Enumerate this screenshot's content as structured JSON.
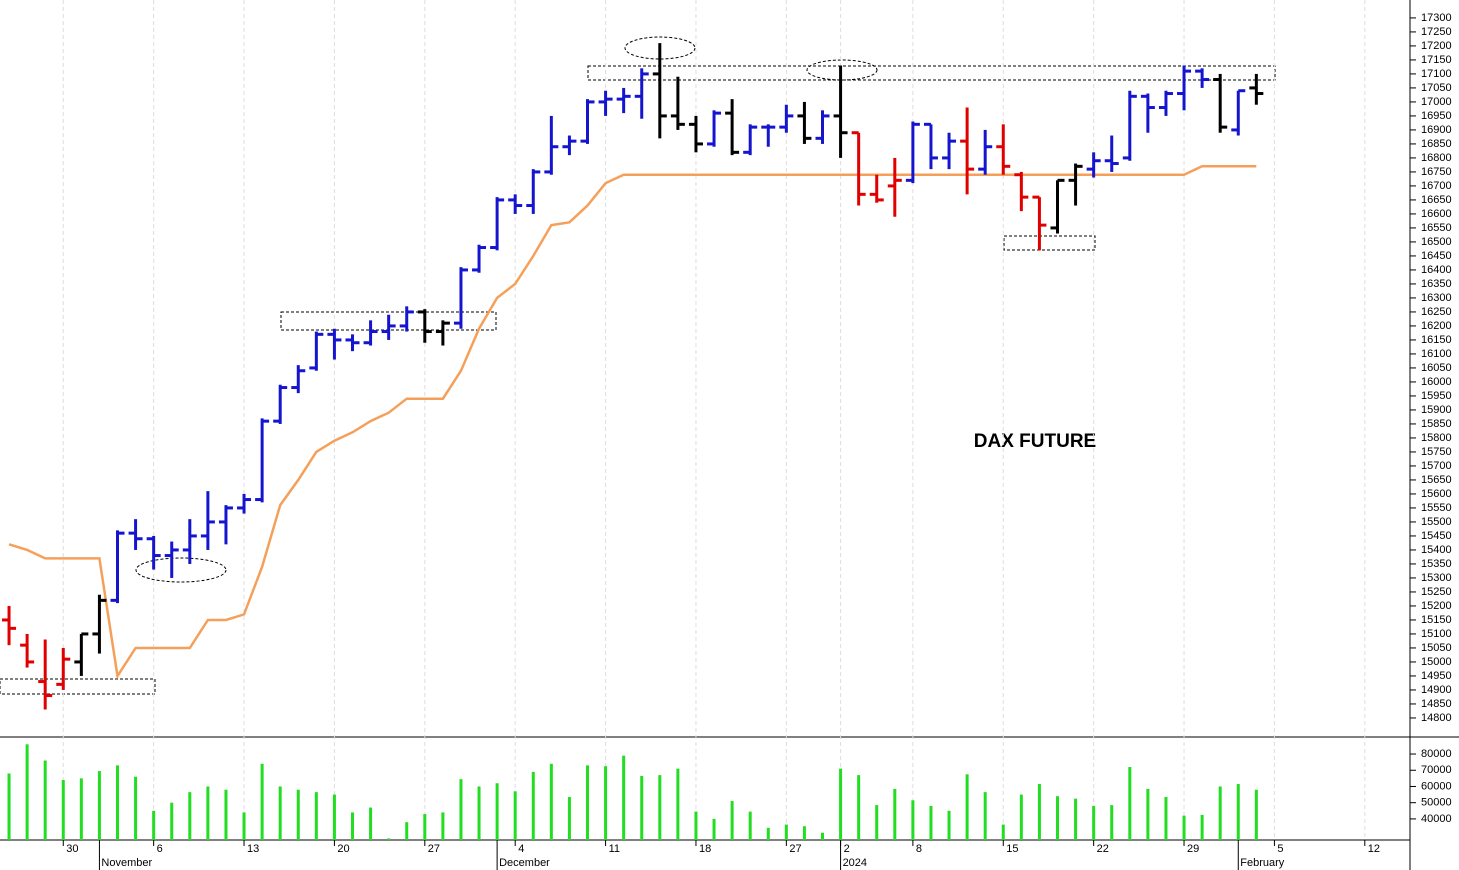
{
  "chart_data": [
    {
      "type": "ohlc",
      "title": "DAX FUTURE",
      "open": [
        15150,
        15060,
        14930,
        14920,
        15000,
        15100,
        15220,
        15460,
        15440,
        15380,
        15400,
        15450,
        15500,
        15550,
        15580,
        15860,
        15980,
        16050,
        16170,
        16150,
        16140,
        16180,
        16200,
        16250,
        16180,
        16210,
        16400,
        16480,
        16650,
        16630,
        16750,
        16840,
        16860,
        17000,
        17010,
        17020,
        17100,
        16950,
        16920,
        16850,
        16960,
        16820,
        16910,
        16910,
        16950,
        16870,
        16950,
        16890,
        16670,
        16700,
        16720,
        16920,
        16800,
        16860,
        16760,
        16840,
        16740,
        16660,
        16550,
        16720,
        16760,
        16790,
        16800,
        17020,
        16980,
        17030,
        17110,
        17080,
        16900,
        17050
      ],
      "high": [
        15200,
        15100,
        15080,
        15050,
        15100,
        15240,
        15470,
        15510,
        15450,
        15430,
        15510,
        15610,
        15560,
        15600,
        15870,
        15990,
        16060,
        16180,
        16190,
        16170,
        16220,
        16240,
        16270,
        16260,
        16220,
        16410,
        16490,
        16660,
        16670,
        16760,
        16950,
        16880,
        17010,
        17040,
        17050,
        17120,
        17210,
        17090,
        16950,
        16970,
        17010,
        16920,
        16920,
        16990,
        17000,
        16970,
        17130,
        16890,
        16740,
        16800,
        16930,
        16920,
        16890,
        16980,
        16900,
        16920,
        16750,
        16660,
        16720,
        16780,
        16820,
        16880,
        17040,
        17030,
        17040,
        17130,
        17120,
        17100,
        17040,
        17100
      ],
      "low": [
        15060,
        14980,
        14830,
        14900,
        14950,
        15030,
        15210,
        15400,
        15330,
        15300,
        15350,
        15400,
        15420,
        15530,
        15570,
        15850,
        15960,
        16040,
        16080,
        16110,
        16130,
        16150,
        16180,
        16140,
        16130,
        16190,
        16390,
        16470,
        16600,
        16600,
        16740,
        16810,
        16850,
        16950,
        16960,
        16940,
        16870,
        16900,
        16820,
        16840,
        16810,
        16810,
        16840,
        16890,
        16850,
        16850,
        16800,
        16630,
        16640,
        16590,
        16710,
        16760,
        16760,
        16670,
        16740,
        16740,
        16610,
        16470,
        16530,
        16630,
        16730,
        16750,
        16790,
        16890,
        16950,
        16970,
        17050,
        16890,
        16880,
        16990
      ],
      "close": [
        15120,
        15000,
        14880,
        15010,
        15100,
        15220,
        15460,
        15440,
        15380,
        15400,
        15450,
        15500,
        15550,
        15580,
        15860,
        15980,
        16040,
        16170,
        16150,
        16140,
        16180,
        16200,
        16250,
        16180,
        16210,
        16400,
        16480,
        16650,
        16630,
        16750,
        16840,
        16860,
        17000,
        17010,
        17020,
        17100,
        16950,
        16920,
        16850,
        16960,
        16820,
        16910,
        16910,
        16950,
        16870,
        16950,
        16890,
        16670,
        16650,
        16720,
        16920,
        16800,
        16860,
        16760,
        16840,
        16770,
        16660,
        16560,
        16720,
        16770,
        16790,
        16780,
        17020,
        16980,
        17030,
        17110,
        17080,
        16910,
        17040,
        17030
      ],
      "colors": [
        "#e00000",
        "#e00000",
        "#e00000",
        "#e00000",
        "#000000",
        "#000000",
        "#1515d0",
        "#1515d0",
        "#1515d0",
        "#1515d0",
        "#1515d0",
        "#1515d0",
        "#1515d0",
        "#1515d0",
        "#1515d0",
        "#1515d0",
        "#1515d0",
        "#1515d0",
        "#1515d0",
        "#1515d0",
        "#1515d0",
        "#1515d0",
        "#1515d0",
        "#000000",
        "#000000",
        "#1515d0",
        "#1515d0",
        "#1515d0",
        "#1515d0",
        "#1515d0",
        "#1515d0",
        "#1515d0",
        "#1515d0",
        "#1515d0",
        "#1515d0",
        "#1515d0",
        "#000000",
        "#000000",
        "#000000",
        "#1515d0",
        "#000000",
        "#1515d0",
        "#1515d0",
        "#1515d0",
        "#000000",
        "#1515d0",
        "#000000",
        "#e00000",
        "#e00000",
        "#e00000",
        "#1515d0",
        "#1515d0",
        "#1515d0",
        "#e00000",
        "#1515d0",
        "#e00000",
        "#e00000",
        "#e00000",
        "#000000",
        "#000000",
        "#1515d0",
        "#1515d0",
        "#1515d0",
        "#1515d0",
        "#1515d0",
        "#1515d0",
        "#1515d0",
        "#000000",
        "#1515d0",
        "#000000"
      ],
      "overlay": {
        "color": "#f5a05a",
        "values": [
          15420,
          15400,
          15370,
          15370,
          15370,
          15370,
          14950,
          15050,
          15050,
          15050,
          15050,
          15150,
          15150,
          15170,
          15340,
          15560,
          15650,
          15750,
          15790,
          15820,
          15860,
          15890,
          15940,
          15940,
          15940,
          16040,
          16190,
          16300,
          16350,
          16450,
          16560,
          16570,
          16630,
          16710,
          16740,
          16740,
          16740,
          16740,
          16740,
          16740,
          16740,
          16740,
          16740,
          16740,
          16740,
          16740,
          16740,
          16740,
          16740,
          16740,
          16740,
          16740,
          16740,
          16740,
          16740,
          16740,
          16740,
          16740,
          16740,
          16740,
          16740,
          16740,
          16740,
          16740,
          16740,
          16740,
          16770,
          16770,
          16770,
          16770
        ]
      },
      "ylim": [
        14732,
        17364
      ],
      "yticks": [
        14800,
        14850,
        14900,
        14950,
        15000,
        15050,
        15100,
        15150,
        15200,
        15250,
        15300,
        15350,
        15400,
        15450,
        15500,
        15550,
        15600,
        15650,
        15700,
        15750,
        15800,
        15850,
        15900,
        15950,
        16000,
        16050,
        16100,
        16150,
        16200,
        16250,
        16300,
        16350,
        16400,
        16450,
        16500,
        16550,
        16600,
        16650,
        16700,
        16750,
        16800,
        16850,
        16900,
        16950,
        17000,
        17050,
        17100,
        17150,
        17200,
        17250,
        17300
      ]
    },
    {
      "type": "bar",
      "color": "#22dd22",
      "categories": [
        null,
        null,
        null,
        "30",
        null,
        null,
        null,
        null,
        "6",
        null,
        null,
        null,
        null,
        "13",
        null,
        null,
        null,
        null,
        "20",
        null,
        null,
        null,
        null,
        "27",
        null,
        null,
        null,
        null,
        "4",
        null,
        null,
        null,
        null,
        "11",
        null,
        null,
        null,
        null,
        "18",
        null,
        null,
        null,
        null,
        "27",
        null,
        null,
        "2",
        null,
        null,
        null,
        "8",
        null,
        null,
        null,
        null,
        "15",
        null,
        null,
        null,
        null,
        "22",
        null,
        null,
        null,
        null,
        "29",
        null,
        null,
        null,
        null,
        "5",
        null,
        null,
        null,
        null,
        "12",
        null,
        null
      ],
      "month_ticks": [
        {
          "value": 5,
          "label": "November"
        },
        {
          "value": 27,
          "label": "December"
        },
        {
          "value": 46,
          "label": "2024"
        },
        {
          "value": 68,
          "label": "February"
        }
      ],
      "values": [
        68000,
        86000,
        76000,
        64000,
        65000,
        69500,
        73000,
        66000,
        45000,
        50000,
        56500,
        60000,
        58000,
        44000,
        74000,
        60000,
        58000,
        56500,
        55000,
        44000,
        47000,
        28000,
        38000,
        43000,
        44000,
        64500,
        60000,
        62000,
        57000,
        69000,
        74000,
        53500,
        73000,
        72500,
        79000,
        66500,
        67000,
        71000,
        44500,
        40000,
        51000,
        44500,
        34500,
        36500,
        35500,
        31500,
        71000,
        67000,
        48500,
        58500,
        51500,
        48000,
        45000,
        67500,
        56500,
        36500,
        55000,
        61500,
        54000,
        52500,
        48000,
        48500,
        72000,
        58500,
        53500,
        42000,
        42500,
        60000,
        61500,
        58000,
        null,
        null,
        null,
        null,
        null,
        null,
        null,
        null
      ],
      "ylim": [
        27000,
        90500
      ],
      "yticks": [
        40000,
        50000,
        60000,
        70000,
        80000
      ]
    }
  ]
}
